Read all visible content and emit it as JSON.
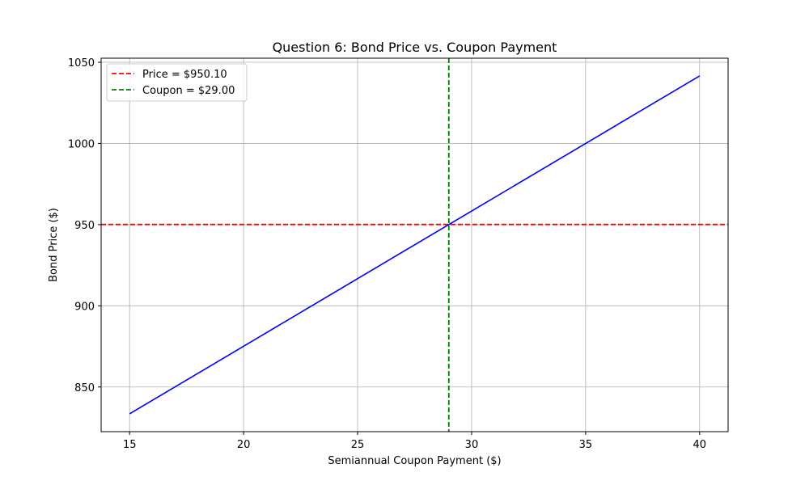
{
  "chart_data": {
    "type": "line",
    "title": "Question 6: Bond Price vs. Coupon Payment",
    "xlabel": "Semiannual Coupon Payment ($)",
    "ylabel": "Bond Price ($)",
    "xlim": [
      13.75,
      41.25
    ],
    "ylim": [
      822.5,
      1052.5
    ],
    "x_ticks": [
      15,
      20,
      25,
      30,
      35,
      40
    ],
    "y_ticks": [
      850,
      900,
      950,
      1000,
      1050
    ],
    "grid": true,
    "legend_position": "top-left",
    "series": [
      {
        "x": [
          15,
          40
        ],
        "y": [
          833.5,
          1041.6
        ],
        "color": "#0000ff",
        "style": "solid"
      }
    ],
    "reference_lines": [
      {
        "name": "Price = $950.10",
        "orientation": "horizontal",
        "value": 950.1,
        "color": "#ff0000",
        "style": "dashed"
      },
      {
        "name": "Coupon = $29.00",
        "orientation": "vertical",
        "value": 29.0,
        "color": "#008000",
        "style": "dashed"
      }
    ]
  }
}
